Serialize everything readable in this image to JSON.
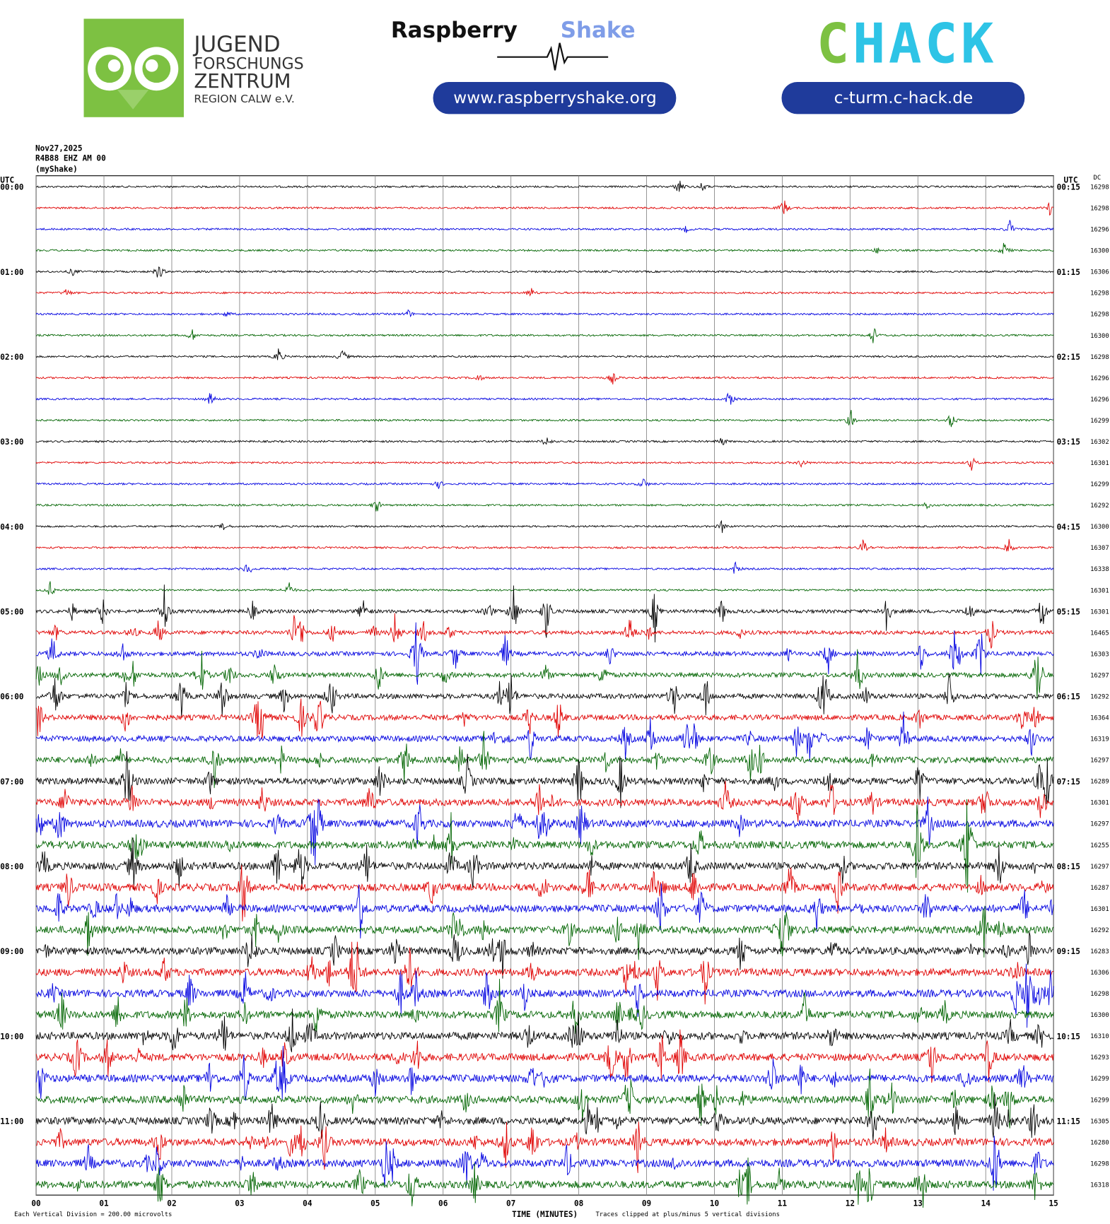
{
  "header": {
    "jfz": [
      "JUGEND",
      "FORSCHUNGS",
      "ZENTRUM",
      "REGION CALW e.V."
    ],
    "rs_name": "Raspberry",
    "rs_name2": "Shake",
    "rs_url": "www.raspberryshake.org",
    "chack": "CHACK",
    "chack_url": "c-turm.c-hack.de"
  },
  "chart_data": {
    "type": "helicorder",
    "info": [
      "Nov27,2025",
      "R4B88 EHZ AM 00",
      "(myShake)"
    ],
    "utc_label": "UTC",
    "dc_label": "DC",
    "left_labels": [
      "00:00",
      "01:00",
      "02:00",
      "03:00",
      "04:00",
      "05:00",
      "06:00",
      "07:00",
      "08:00",
      "09:00",
      "10:00",
      "11:00"
    ],
    "right_labels": [
      "00:15",
      "01:15",
      "02:15",
      "03:15",
      "04:15",
      "05:15",
      "06:15",
      "07:15",
      "08:15",
      "09:15",
      "10:15",
      "11:15"
    ],
    "dc_values": [
      16298,
      16298,
      16296,
      16300,
      16306,
      16298,
      16298,
      16300,
      16298,
      16296,
      16296,
      16299,
      16302,
      16301,
      16299,
      16292,
      16300,
      16307,
      16338,
      16301,
      16301,
      16465,
      16303,
      16297,
      16292,
      16364,
      16319,
      16297,
      16289,
      16301,
      16297,
      16255,
      16297,
      16287,
      16301,
      16292,
      16283,
      16306,
      16298,
      16300,
      16310,
      16293,
      16299,
      16299,
      16305,
      16280,
      16298,
      16318
    ],
    "colors": [
      "#000000",
      "#e00000",
      "#0000e0",
      "#006400"
    ],
    "xlim": [
      0,
      15
    ],
    "xticks": [
      {
        "value": 0,
        "label": "00"
      },
      {
        "value": 1,
        "label": "01"
      },
      {
        "value": 2,
        "label": "02"
      },
      {
        "value": 3,
        "label": "03"
      },
      {
        "value": 4,
        "label": "04"
      },
      {
        "value": 5,
        "label": "05"
      },
      {
        "value": 6,
        "label": "06"
      },
      {
        "value": 7,
        "label": "07"
      },
      {
        "value": 8,
        "label": "08"
      },
      {
        "value": 9,
        "label": "09"
      },
      {
        "value": 10,
        "label": "10"
      },
      {
        "value": 11,
        "label": "11"
      },
      {
        "value": 12,
        "label": "12"
      },
      {
        "value": 13,
        "label": "13"
      },
      {
        "value": 14,
        "label": "14"
      },
      {
        "value": 15,
        "label": "15"
      }
    ],
    "grid": true,
    "xlabel": "TIME (MINUTES)",
    "scale_note": "Each Vertical Division = 200.00 microvolts",
    "clip_note": "Traces clipped at plus/minus 5 vertical divisions"
  }
}
